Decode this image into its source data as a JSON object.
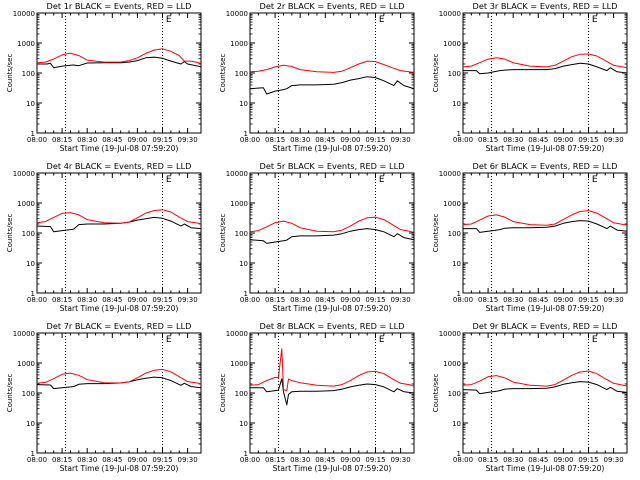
{
  "figure": {
    "start_time_label": "Start Time (19-Jul-08 07:59:20)",
    "ylabel": "Counts/sec",
    "x_tick_labels": [
      "08:00",
      "08:15",
      "08:30",
      "08:45",
      "09:00",
      "09:15",
      "09:30"
    ],
    "y_tick_labels": [
      "1",
      "10",
      "100",
      "1000",
      "10000"
    ],
    "marker_label": "E",
    "colors": {
      "events": "#000000",
      "lld": "#ff0000",
      "axes": "#000000",
      "background": "#ffffff"
    }
  },
  "chart_data": [
    {
      "type": "line",
      "title": "Det 1r BLACK = Events, RED = LLD",
      "xlabel": "Start Time (19-Jul-08 07:59:20)",
      "ylabel": "Counts/sec",
      "x_unit": "minutes after 08:00",
      "xlim": [
        0,
        98
      ],
      "ylim": [
        1,
        10000
      ],
      "yscale": "log",
      "vlines": [
        17,
        75
      ],
      "marker": {
        "text": "E",
        "x": 77
      },
      "series": [
        {
          "name": "Events",
          "color": "#000000",
          "x": [
            0,
            6,
            8,
            10,
            15,
            20,
            22,
            25,
            30,
            40,
            50,
            55,
            60,
            65,
            70,
            75,
            80,
            86,
            88,
            90,
            95,
            98
          ],
          "y": [
            200,
            200,
            210,
            150,
            170,
            180,
            185,
            175,
            215,
            220,
            220,
            230,
            260,
            320,
            340,
            310,
            250,
            200,
            240,
            200,
            175,
            160
          ]
        },
        {
          "name": "LLD",
          "color": "#ff0000",
          "x": [
            0,
            5,
            10,
            15,
            20,
            25,
            30,
            40,
            50,
            55,
            60,
            65,
            70,
            75,
            80,
            85,
            88,
            92,
            95,
            98
          ],
          "y": [
            220,
            230,
            290,
            400,
            460,
            380,
            270,
            230,
            230,
            260,
            320,
            450,
            580,
            640,
            530,
            380,
            250,
            250,
            230,
            210
          ]
        }
      ]
    },
    {
      "type": "line",
      "title": "Det 2r BLACK = Events, RED = LLD",
      "xlabel": "Start Time (19-Jul-08 07:59:20)",
      "ylabel": "Counts/sec",
      "x_unit": "minutes after 08:00",
      "xlim": [
        0,
        98
      ],
      "ylim": [
        1,
        10000
      ],
      "yscale": "log",
      "vlines": [
        17,
        75
      ],
      "marker": {
        "text": "E",
        "x": 77
      },
      "series": [
        {
          "name": "Events",
          "color": "#000000",
          "x": [
            0,
            8,
            10,
            15,
            20,
            22,
            25,
            30,
            40,
            50,
            55,
            60,
            65,
            70,
            75,
            80,
            86,
            88,
            92,
            98
          ],
          "y": [
            30,
            32,
            20,
            25,
            28,
            30,
            38,
            40,
            40,
            42,
            48,
            58,
            65,
            75,
            70,
            55,
            38,
            55,
            38,
            30
          ]
        },
        {
          "name": "LLD",
          "color": "#ff0000",
          "x": [
            0,
            5,
            10,
            15,
            20,
            25,
            30,
            40,
            50,
            55,
            60,
            65,
            70,
            75,
            80,
            85,
            90,
            95,
            98
          ],
          "y": [
            110,
            115,
            130,
            160,
            180,
            165,
            130,
            110,
            105,
            115,
            150,
            200,
            250,
            240,
            190,
            150,
            120,
            110,
            105
          ]
        }
      ]
    },
    {
      "type": "line",
      "title": "Det 3r BLACK = Events, RED = LLD",
      "xlabel": "Start Time (19-Jul-08 07:59:20)",
      "ylabel": "Counts/sec",
      "x_unit": "minutes after 08:00",
      "xlim": [
        0,
        98
      ],
      "ylim": [
        1,
        10000
      ],
      "yscale": "log",
      "vlines": [
        17,
        75
      ],
      "marker": {
        "text": "E",
        "x": 77
      },
      "series": [
        {
          "name": "Events",
          "color": "#000000",
          "x": [
            0,
            8,
            10,
            15,
            20,
            22,
            25,
            30,
            40,
            50,
            55,
            60,
            65,
            70,
            75,
            80,
            86,
            88,
            92,
            98
          ],
          "y": [
            120,
            120,
            95,
            100,
            115,
            120,
            125,
            130,
            130,
            130,
            140,
            170,
            190,
            210,
            200,
            160,
            120,
            150,
            110,
            100
          ]
        },
        {
          "name": "LLD",
          "color": "#ff0000",
          "x": [
            0,
            5,
            10,
            15,
            20,
            25,
            30,
            40,
            50,
            55,
            60,
            65,
            70,
            75,
            80,
            85,
            90,
            95,
            98
          ],
          "y": [
            160,
            170,
            220,
            290,
            320,
            290,
            220,
            170,
            160,
            180,
            250,
            350,
            420,
            430,
            370,
            260,
            180,
            160,
            150
          ]
        }
      ]
    },
    {
      "type": "line",
      "title": "Det 4r BLACK = Events, RED = LLD",
      "xlabel": "Start Time (19-Jul-08 07:59:20)",
      "ylabel": "Counts/sec",
      "x_unit": "minutes after 08:00",
      "xlim": [
        0,
        98
      ],
      "ylim": [
        1,
        10000
      ],
      "yscale": "log",
      "vlines": [
        17,
        75
      ],
      "marker": {
        "text": "E",
        "x": 77
      },
      "series": [
        {
          "name": "Events",
          "color": "#000000",
          "x": [
            0,
            8,
            10,
            15,
            20,
            22,
            25,
            30,
            40,
            50,
            55,
            60,
            65,
            70,
            75,
            80,
            86,
            88,
            92,
            98
          ],
          "y": [
            170,
            165,
            110,
            120,
            130,
            135,
            190,
            200,
            200,
            210,
            230,
            270,
            300,
            330,
            310,
            250,
            170,
            200,
            150,
            140
          ]
        },
        {
          "name": "LLD",
          "color": "#ff0000",
          "x": [
            0,
            5,
            10,
            15,
            20,
            25,
            30,
            40,
            50,
            55,
            60,
            65,
            70,
            75,
            80,
            85,
            90,
            95,
            98
          ],
          "y": [
            220,
            240,
            330,
            450,
            480,
            400,
            280,
            220,
            210,
            230,
            320,
            460,
            560,
            600,
            500,
            340,
            240,
            220,
            200
          ]
        }
      ]
    },
    {
      "type": "line",
      "title": "Det 5r BLACK = Events, RED = LLD",
      "xlabel": "Start Time (19-Jul-08 07:59:20)",
      "ylabel": "Counts/sec",
      "x_unit": "minutes after 08:00",
      "xlim": [
        0,
        98
      ],
      "ylim": [
        1,
        10000
      ],
      "yscale": "log",
      "vlines": [
        17,
        75
      ],
      "marker": {
        "text": "E",
        "x": 77
      },
      "series": [
        {
          "name": "Events",
          "color": "#000000",
          "x": [
            0,
            8,
            10,
            15,
            20,
            22,
            25,
            30,
            40,
            50,
            55,
            60,
            65,
            70,
            75,
            80,
            86,
            88,
            92,
            98
          ],
          "y": [
            60,
            55,
            45,
            50,
            55,
            58,
            75,
            80,
            80,
            85,
            95,
            115,
            130,
            140,
            130,
            110,
            75,
            95,
            70,
            60
          ]
        },
        {
          "name": "LLD",
          "color": "#ff0000",
          "x": [
            0,
            5,
            10,
            15,
            20,
            25,
            30,
            40,
            50,
            55,
            60,
            65,
            70,
            75,
            80,
            85,
            90,
            95,
            98
          ],
          "y": [
            110,
            120,
            160,
            220,
            250,
            210,
            150,
            115,
            110,
            125,
            170,
            250,
            320,
            340,
            280,
            190,
            130,
            115,
            105
          ]
        }
      ]
    },
    {
      "type": "line",
      "title": "Det 6r BLACK = Events, RED = LLD",
      "xlabel": "Start Time (19-Jul-08 07:59:20)",
      "ylabel": "Counts/sec",
      "x_unit": "minutes after 08:00",
      "xlim": [
        0,
        98
      ],
      "ylim": [
        1,
        10000
      ],
      "yscale": "log",
      "vlines": [
        17,
        75
      ],
      "marker": {
        "text": "E",
        "x": 77
      },
      "series": [
        {
          "name": "Events",
          "color": "#000000",
          "x": [
            0,
            8,
            10,
            15,
            20,
            22,
            25,
            30,
            40,
            50,
            55,
            60,
            65,
            70,
            75,
            80,
            86,
            88,
            92,
            98
          ],
          "y": [
            140,
            140,
            105,
            115,
            125,
            130,
            145,
            150,
            150,
            155,
            170,
            210,
            240,
            260,
            250,
            200,
            140,
            170,
            125,
            115
          ]
        },
        {
          "name": "LLD",
          "color": "#ff0000",
          "x": [
            0,
            5,
            10,
            15,
            20,
            25,
            30,
            40,
            50,
            55,
            60,
            65,
            70,
            75,
            80,
            85,
            90,
            95,
            98
          ],
          "y": [
            190,
            200,
            270,
            370,
            400,
            340,
            240,
            190,
            180,
            200,
            280,
            400,
            520,
            560,
            460,
            320,
            220,
            195,
            180
          ]
        }
      ]
    },
    {
      "type": "line",
      "title": "Det 7r BLACK = Events, RED = LLD",
      "xlabel": "Start Time (19-Jul-08 07:59:20)",
      "ylabel": "Counts/sec",
      "x_unit": "minutes after 08:00",
      "xlim": [
        0,
        98
      ],
      "ylim": [
        1,
        10000
      ],
      "yscale": "log",
      "vlines": [
        17,
        75
      ],
      "marker": {
        "text": "E",
        "x": 77
      },
      "series": [
        {
          "name": "Events",
          "color": "#000000",
          "x": [
            0,
            8,
            10,
            15,
            20,
            22,
            25,
            30,
            40,
            50,
            55,
            60,
            65,
            70,
            75,
            80,
            86,
            88,
            92,
            98
          ],
          "y": [
            190,
            185,
            140,
            150,
            160,
            165,
            195,
            205,
            205,
            215,
            235,
            275,
            310,
            340,
            320,
            260,
            180,
            210,
            165,
            150
          ]
        },
        {
          "name": "LLD",
          "color": "#ff0000",
          "x": [
            0,
            5,
            10,
            15,
            20,
            25,
            30,
            40,
            50,
            55,
            60,
            65,
            70,
            75,
            80,
            85,
            90,
            95,
            98
          ],
          "y": [
            210,
            225,
            300,
            420,
            460,
            390,
            280,
            220,
            215,
            235,
            320,
            460,
            570,
            610,
            510,
            350,
            240,
            220,
            200
          ]
        }
      ]
    },
    {
      "type": "line",
      "title": "Det 8r BLACK = Events, RED = LLD",
      "xlabel": "Start Time (19-Jul-08 07:59:20)",
      "ylabel": "Counts/sec",
      "x_unit": "minutes after 08:00",
      "xlim": [
        0,
        98
      ],
      "ylim": [
        1,
        10000
      ],
      "yscale": "log",
      "vlines": [
        17,
        75
      ],
      "marker": {
        "text": "E",
        "x": 77
      },
      "series": [
        {
          "name": "Events",
          "color": "#000000",
          "x": [
            0,
            8,
            10,
            15,
            17,
            19,
            20,
            22,
            23,
            25,
            30,
            40,
            50,
            55,
            60,
            65,
            70,
            75,
            80,
            86,
            88,
            92,
            98
          ],
          "y": [
            150,
            150,
            110,
            120,
            125,
            300,
            110,
            40,
            90,
            110,
            115,
            115,
            120,
            135,
            160,
            180,
            200,
            190,
            160,
            110,
            140,
            110,
            100
          ]
        },
        {
          "name": "LLD",
          "color": "#ff0000",
          "x": [
            0,
            5,
            10,
            15,
            17,
            19,
            20,
            22,
            23,
            25,
            30,
            40,
            50,
            55,
            60,
            65,
            70,
            75,
            80,
            85,
            90,
            95,
            98
          ],
          "y": [
            180,
            190,
            260,
            330,
            320,
            3000,
            130,
            120,
            290,
            260,
            220,
            180,
            170,
            190,
            260,
            380,
            500,
            530,
            440,
            300,
            210,
            190,
            170
          ]
        }
      ]
    },
    {
      "type": "line",
      "title": "Det 9r BLACK = Events, RED = LLD",
      "xlabel": "Start Time (19-Jul-08 07:59:20)",
      "ylabel": "Counts/sec",
      "x_unit": "minutes after 08:00",
      "xlim": [
        0,
        98
      ],
      "ylim": [
        1,
        10000
      ],
      "yscale": "log",
      "vlines": [
        17,
        75
      ],
      "marker": {
        "text": "E",
        "x": 77
      },
      "series": [
        {
          "name": "Events",
          "color": "#000000",
          "x": [
            0,
            8,
            10,
            15,
            20,
            22,
            25,
            30,
            40,
            50,
            55,
            60,
            65,
            70,
            75,
            80,
            86,
            88,
            92,
            98
          ],
          "y": [
            130,
            125,
            95,
            105,
            115,
            120,
            135,
            140,
            140,
            145,
            160,
            195,
            220,
            240,
            230,
            190,
            130,
            155,
            115,
            105
          ]
        },
        {
          "name": "LLD",
          "color": "#ff0000",
          "x": [
            0,
            5,
            10,
            15,
            20,
            25,
            30,
            40,
            50,
            55,
            60,
            65,
            70,
            75,
            80,
            85,
            90,
            95,
            98
          ],
          "y": [
            180,
            190,
            250,
            350,
            380,
            320,
            230,
            180,
            170,
            190,
            270,
            390,
            500,
            540,
            440,
            300,
            210,
            185,
            170
          ]
        }
      ]
    }
  ]
}
